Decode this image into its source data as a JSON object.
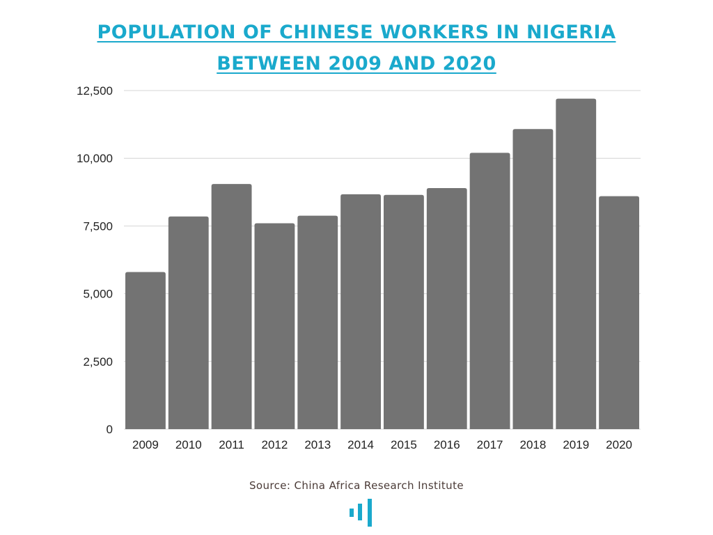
{
  "title_lines": [
    "POPULATION OF CHINESE WORKERS IN NIGERIA",
    "BETWEEN 2009 AND 2020"
  ],
  "source": "Source: China Africa Research Institute",
  "colors": {
    "title": "#1aa9cc",
    "bar": "#737373",
    "grid": "#d4d4d4",
    "source": "#4a3a36",
    "logo": "#1aa9cc"
  },
  "logo_icon": "bar-chart-logo-icon",
  "chart_data": {
    "type": "bar",
    "title": "POPULATION OF CHINESE WORKERS IN NIGERIA BETWEEN 2009 AND 2020",
    "categories": [
      "2009",
      "2010",
      "2011",
      "2012",
      "2013",
      "2014",
      "2015",
      "2016",
      "2017",
      "2018",
      "2019",
      "2020"
    ],
    "values": [
      5800,
      7850,
      9050,
      7600,
      7880,
      8670,
      8650,
      8900,
      10200,
      11080,
      12200,
      8600
    ],
    "xlabel": "",
    "ylabel": "",
    "ylim": [
      0,
      12500
    ],
    "yticks": [
      0,
      2500,
      5000,
      7500,
      10000,
      12500
    ],
    "ytick_labels": [
      "0",
      "2,500",
      "5,000",
      "7,500",
      "10,000",
      "12,500"
    ],
    "grid": true,
    "legend": "none"
  }
}
